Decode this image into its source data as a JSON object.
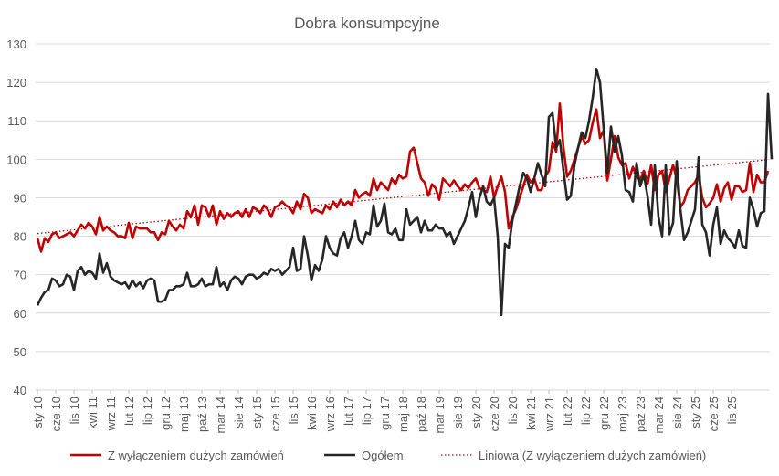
{
  "chart_data": {
    "type": "line",
    "title": "Dobra konsumpcyjne",
    "xlabel": "",
    "ylabel": "",
    "ylim": [
      40,
      130
    ],
    "yticks": [
      40,
      50,
      60,
      70,
      80,
      90,
      100,
      110,
      120,
      130
    ],
    "grid": true,
    "legend_position": "bottom",
    "x_start": "sty 10",
    "x_tick_labels": [
      "sty 10",
      "cze 10",
      "lis 10",
      "kwi 11",
      "wrz 11",
      "lut 12",
      "lip 12",
      "gru 12",
      "maj 13",
      "paź 13",
      "mar 14",
      "sie 14",
      "sty 15",
      "cze 15",
      "lis 15",
      "kwi 16",
      "wrz 16",
      "lut 17",
      "lip 17",
      "gru 17",
      "maj 18",
      "paź 18",
      "mar 19",
      "sie 19",
      "sty 20",
      "cze 20",
      "lis 20",
      "kwi 21",
      "wrz 21",
      "lut 22",
      "lip 22",
      "gru 22",
      "maj 23",
      "paź 23",
      "mar 24",
      "sie 24",
      "sty 25",
      "cze 25",
      "lis 25"
    ],
    "series": [
      {
        "name": "Z wyłączeniem dużych zamówień",
        "color": "#c00000",
        "values": [
          79.5,
          76.0,
          79.5,
          78.5,
          80.5,
          81.0,
          79.5,
          80.0,
          80.5,
          81.0,
          80.0,
          81.5,
          83.0,
          82.0,
          83.5,
          82.5,
          80.5,
          85.0,
          81.5,
          82.5,
          81.5,
          81.0,
          80.0,
          80.0,
          79.5,
          83.5,
          79.5,
          82.5,
          82.0,
          82.0,
          82.0,
          81.0,
          81.0,
          79.0,
          81.0,
          80.5,
          84.0,
          82.5,
          81.5,
          83.0,
          82.0,
          86.5,
          85.0,
          88.0,
          83.0,
          88.0,
          87.5,
          85.0,
          88.0,
          83.0,
          86.5,
          84.5,
          86.0,
          85.0,
          86.0,
          86.5,
          85.0,
          87.0,
          85.0,
          87.5,
          87.0,
          86.0,
          88.0,
          87.0,
          85.0,
          87.5,
          88.0,
          89.0,
          88.0,
          87.5,
          86.0,
          89.0,
          87.0,
          91.0,
          90.0,
          86.0,
          87.0,
          86.5,
          86.0,
          88.0,
          87.0,
          89.0,
          87.5,
          89.5,
          88.0,
          89.0,
          88.0,
          92.0,
          90.0,
          91.0,
          91.5,
          90.5,
          95.0,
          92.0,
          94.0,
          93.0,
          92.0,
          95.0,
          93.5,
          96.0,
          95.0,
          95.5,
          102.0,
          103.0,
          99.0,
          95.0,
          94.0,
          90.5,
          93.5,
          92.5,
          89.5,
          95.0,
          94.0,
          93.0,
          94.5,
          93.0,
          92.0,
          93.5,
          92.5,
          94.0,
          95.0,
          92.5,
          92.0,
          91.5,
          95.5,
          90.0,
          93.0,
          95.5,
          91.5,
          82.0,
          85.0,
          87.0,
          90.0,
          93.0,
          96.0,
          94.0,
          95.0,
          92.0,
          92.0,
          95.5,
          97.0,
          104.5,
          102.0,
          114.5,
          103.0,
          95.5,
          97.0,
          100.0,
          103.0,
          106.0,
          104.0,
          105.0,
          109.5,
          113.0,
          105.5,
          107.5,
          94.5,
          100.0,
          106.0,
          100.5,
          98.5,
          99.0,
          95.0,
          98.0,
          95.5,
          94.5,
          97.0,
          93.5,
          98.5,
          92.0,
          96.0,
          97.0,
          91.5,
          95.0,
          98.5,
          95.0,
          87.5,
          89.0,
          92.0,
          93.0,
          94.0,
          96.0,
          90.0,
          87.5,
          88.5,
          90.0,
          93.5,
          89.0,
          92.5,
          94.0,
          89.5,
          93.0,
          93.0,
          91.5,
          92.0,
          99.0,
          91.5,
          96.0,
          94.0,
          94.0,
          97.0
        ]
      },
      {
        "name": "Ogółem",
        "color": "#262626",
        "values": [
          62.0,
          64.0,
          65.5,
          66.0,
          69.0,
          68.5,
          67.0,
          67.5,
          70.0,
          69.5,
          66.0,
          71.0,
          72.0,
          70.0,
          71.0,
          70.5,
          69.0,
          75.5,
          70.5,
          73.0,
          69.5,
          68.5,
          68.0,
          67.5,
          68.0,
          66.5,
          68.5,
          67.0,
          68.0,
          66.5,
          68.5,
          69.0,
          68.5,
          63.0,
          63.0,
          63.5,
          66.0,
          66.0,
          67.0,
          67.0,
          67.5,
          70.5,
          67.0,
          67.0,
          67.5,
          69.0,
          67.0,
          67.5,
          67.5,
          72.0,
          67.0,
          68.0,
          66.0,
          68.5,
          69.5,
          69.0,
          67.5,
          69.5,
          70.0,
          70.0,
          69.0,
          69.5,
          70.5,
          70.0,
          71.5,
          71.0,
          71.5,
          70.0,
          71.0,
          72.0,
          77.0,
          71.0,
          71.5,
          80.0,
          75.0,
          68.5,
          72.5,
          71.0,
          74.0,
          80.0,
          77.0,
          75.5,
          75.0,
          79.5,
          81.0,
          77.0,
          80.0,
          84.0,
          79.0,
          78.0,
          81.0,
          80.5,
          88.0,
          82.5,
          84.0,
          88.5,
          81.0,
          80.5,
          82.0,
          79.0,
          79.0,
          87.0,
          83.0,
          84.0,
          85.0,
          81.0,
          84.0,
          81.5,
          81.5,
          83.0,
          82.0,
          82.0,
          80.0,
          81.0,
          78.0,
          80.0,
          82.0,
          84.0,
          87.5,
          91.5,
          85.0,
          90.0,
          93.0,
          89.0,
          88.0,
          90.0,
          80.0,
          59.5,
          78.0,
          77.0,
          84.0,
          88.5,
          93.0,
          96.5,
          95.0,
          91.5,
          95.0,
          99.0,
          96.0,
          93.0,
          111.0,
          112.0,
          103.0,
          105.0,
          97.0,
          89.5,
          90.5,
          98.5,
          103.0,
          107.0,
          105.5,
          110.0,
          116.0,
          123.5,
          120.0,
          108.0,
          96.5,
          108.5,
          102.0,
          106.0,
          101.0,
          92.0,
          91.5,
          89.0,
          99.0,
          93.0,
          96.0,
          90.5,
          83.0,
          98.5,
          85.0,
          80.0,
          98.5,
          80.5,
          83.5,
          99.5,
          87.0,
          79.0,
          81.0,
          84.0,
          87.0,
          100.5,
          83.0,
          81.0,
          75.0,
          83.0,
          87.5,
          78.0,
          81.5,
          79.5,
          78.5,
          77.0,
          81.5,
          77.5,
          77.0,
          90.0,
          87.0,
          82.5,
          86.0,
          86.5,
          117.0,
          100.0
        ]
      },
      {
        "name": "Liniowa (Z wyłączeniem dużych zamówień)",
        "color": "#c00000",
        "style": "dotted",
        "trend": true,
        "start": 80.7,
        "end": 99.9
      }
    ]
  }
}
